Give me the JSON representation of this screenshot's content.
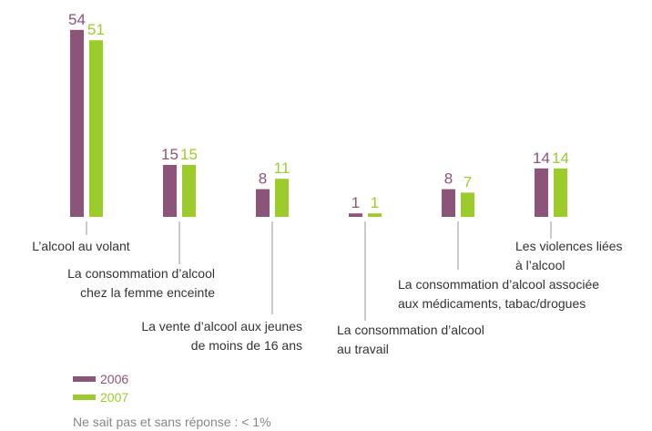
{
  "chart_data": {
    "type": "bar",
    "categories": [
      [
        "L’alcool au volant"
      ],
      [
        "La consommation d’alcool",
        "chez la femme enceinte"
      ],
      [
        "La vente d’alcool aux jeunes",
        "de moins de 16 ans"
      ],
      [
        "La consommation d’alcool",
        "au travail"
      ],
      [
        "La consommation d’alcool associée",
        "aux médicaments, tabac/drogues"
      ],
      [
        "Les violences liées",
        "à l’alcool"
      ]
    ],
    "series": [
      {
        "name": "2006",
        "color": "#8c5478",
        "values": [
          54,
          15,
          8,
          1,
          8,
          14
        ]
      },
      {
        "name": "2007",
        "color": "#9ccb2c",
        "values": [
          51,
          15,
          11,
          1,
          7,
          14
        ]
      }
    ],
    "note": "Ne sait pas et sans réponse : < 1%"
  }
}
